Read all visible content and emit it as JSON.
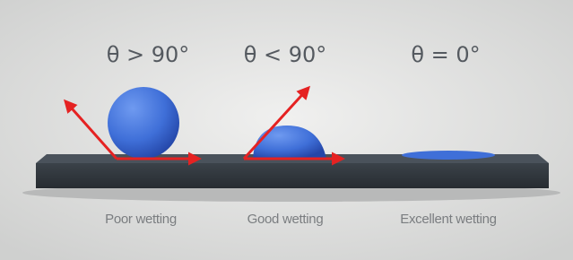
{
  "panels": [
    {
      "angle": "θ > 90°",
      "label": "Poor wetting"
    },
    {
      "angle": "θ < 90°",
      "label": "Good wetting"
    },
    {
      "angle": "θ = 0°",
      "label": "Excellent wetting"
    }
  ]
}
